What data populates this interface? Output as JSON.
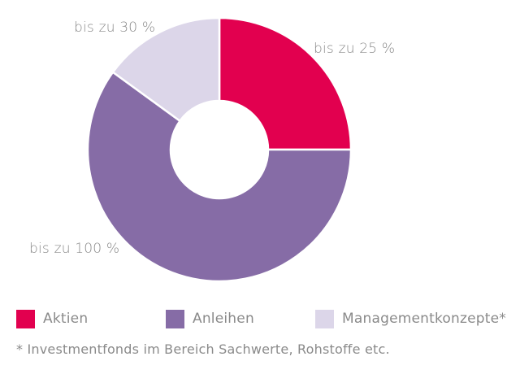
{
  "chart_data": {
    "type": "pie",
    "subtype": "donut",
    "categories": [
      "Aktien",
      "Anleihen",
      "Managementkonzepte*"
    ],
    "values": [
      25,
      60,
      15
    ],
    "slice_labels": [
      "bis zu 25 %",
      "bis zu 100 %",
      "bis zu 30 %"
    ],
    "colors": [
      "#e2004f",
      "#866ca6",
      "#dcd6e9"
    ],
    "legend_position": "bottom",
    "footnote": "* Investmentfonds im Bereich Sachwerte, Rohstoffe etc."
  }
}
